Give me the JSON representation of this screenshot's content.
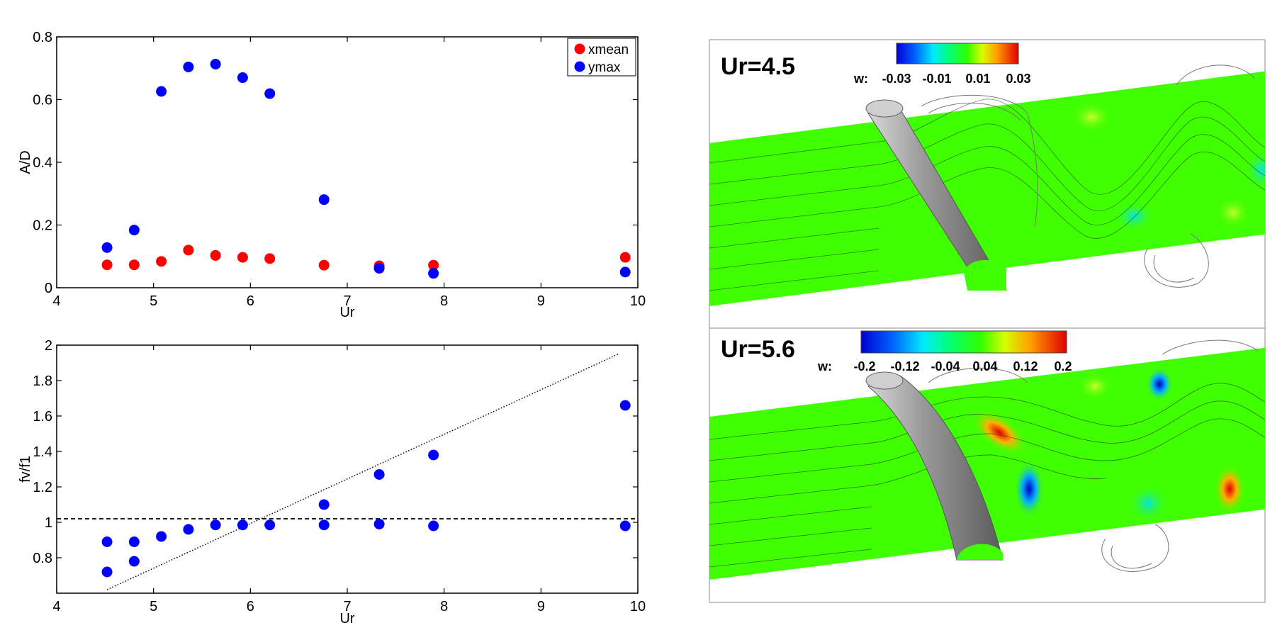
{
  "chart_data": [
    {
      "type": "scatter",
      "title": "",
      "xlabel": "Ur",
      "ylabel": "A/D",
      "xlim": [
        4,
        10
      ],
      "ylim": [
        0,
        0.8
      ],
      "xticks": [
        "4",
        "5",
        "6",
        "7",
        "8",
        "9",
        "10"
      ],
      "yticks": [
        "0",
        "0.2",
        "0.4",
        "0.6",
        "0.8"
      ],
      "legend_position": "top-right",
      "series": [
        {
          "name": "xmean",
          "color": "#ff0000",
          "x": [
            4.52,
            4.8,
            5.08,
            5.36,
            5.64,
            5.92,
            6.2,
            6.76,
            7.33,
            7.89,
            9.87
          ],
          "y": [
            0.073,
            0.073,
            0.084,
            0.12,
            0.103,
            0.097,
            0.093,
            0.072,
            0.07,
            0.072,
            0.097
          ]
        },
        {
          "name": "ymax",
          "color": "#0000ff",
          "x": [
            4.52,
            4.8,
            5.08,
            5.36,
            5.64,
            5.92,
            6.2,
            6.76,
            7.33,
            7.89,
            9.87
          ],
          "y": [
            0.128,
            0.184,
            0.626,
            0.704,
            0.713,
            0.67,
            0.619,
            0.281,
            0.062,
            0.046,
            0.05
          ]
        }
      ]
    },
    {
      "type": "scatter",
      "title": "",
      "xlabel": "Ur",
      "ylabel": "fv/f1",
      "xlim": [
        4,
        10
      ],
      "ylim": [
        0.6,
        2
      ],
      "xticks": [
        "4",
        "5",
        "6",
        "7",
        "8",
        "9",
        "10"
      ],
      "yticks": [
        "0.8",
        "1",
        "1.2",
        "1.4",
        "1.6",
        "1.8",
        "2"
      ],
      "grid": false,
      "series": [
        {
          "color": "#0000ff",
          "x": [
            4.52,
            4.8,
            5.08,
            5.36,
            5.64,
            5.92,
            6.2,
            6.76,
            7.33,
            7.89,
            9.87,
            4.52,
            4.8,
            6.76,
            7.33,
            7.89,
            9.87
          ],
          "y": [
            0.89,
            0.89,
            0.92,
            0.96,
            0.985,
            0.985,
            0.985,
            0.985,
            0.99,
            0.98,
            0.98,
            0.72,
            0.78,
            1.1,
            1.27,
            1.38,
            1.66
          ]
        }
      ],
      "reference_lines": [
        {
          "style": "dashed",
          "x": [
            4,
            10
          ],
          "y": [
            1.02,
            1.02
          ]
        },
        {
          "style": "dotted",
          "x": [
            4.52,
            9.8
          ],
          "y": [
            0.62,
            1.95
          ]
        }
      ]
    }
  ],
  "flow_panels": [
    {
      "label": "Ur=4.5",
      "colorbar": {
        "prefix": "w:",
        "ticks": [
          "-0.03",
          "-0.01",
          "0.01",
          "0.03"
        ]
      }
    },
    {
      "label": "Ur=5.6",
      "colorbar": {
        "prefix": "w:",
        "ticks": [
          "-0.2",
          "-0.12",
          "-0.04",
          "0.04",
          "0.12",
          "0.2"
        ]
      }
    }
  ]
}
